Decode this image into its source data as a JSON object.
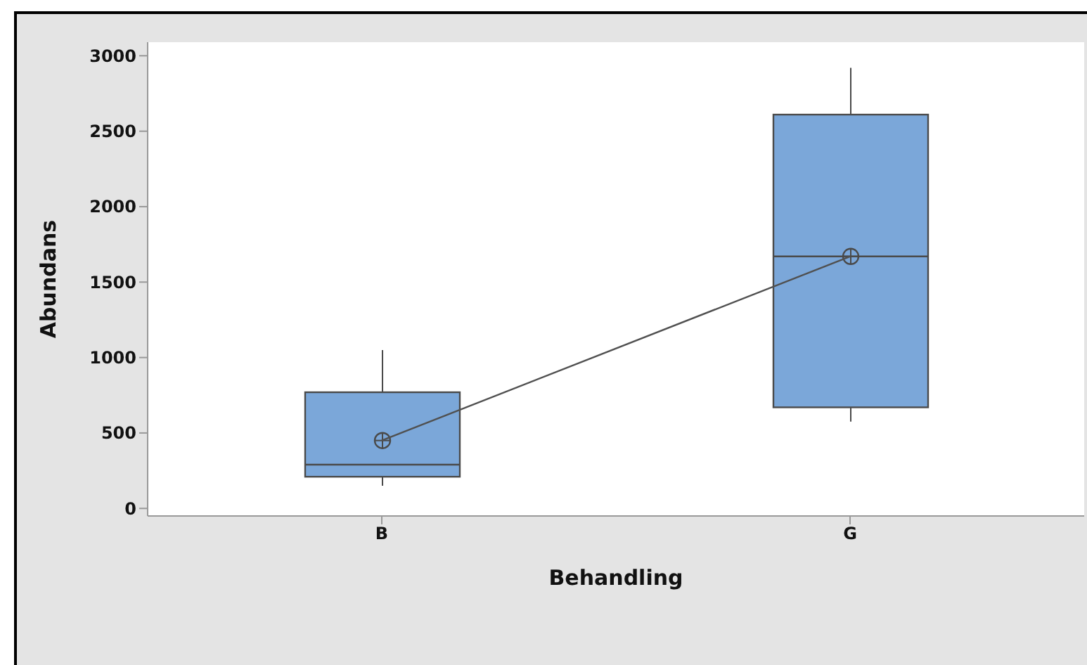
{
  "chart_data": {
    "type": "box",
    "xlabel": "Behandling",
    "ylabel": "Abundans",
    "categories": [
      "B",
      "G"
    ],
    "boxes": [
      {
        "low": 150,
        "q1": 210,
        "median": 290,
        "q3": 770,
        "high": 1050,
        "mean": 450
      },
      {
        "low": 575,
        "q1": 670,
        "median": 1670,
        "q3": 2610,
        "high": 2920,
        "mean": 1670
      }
    ],
    "color": "#7ba7d9",
    "series": [
      {
        "type": "line",
        "color": "#505050",
        "values": [
          450,
          1670
        ],
        "marker": "none"
      }
    ],
    "ylim": [
      -50,
      3090
    ],
    "yticks": [
      0,
      500,
      1000,
      1500,
      2000,
      2500,
      3000
    ],
    "grid": false
  }
}
